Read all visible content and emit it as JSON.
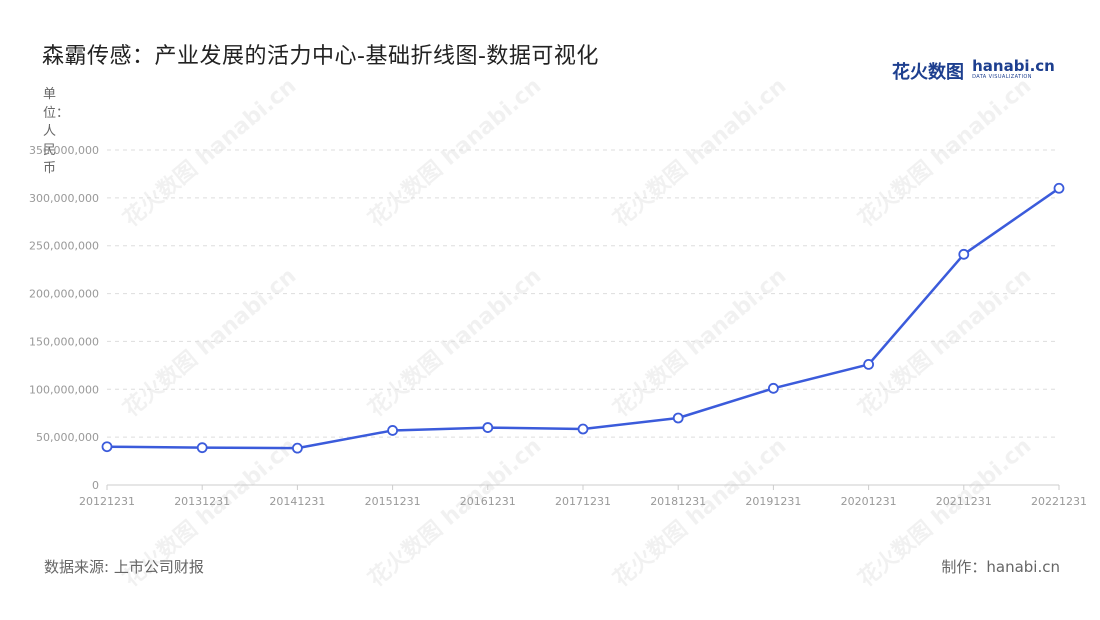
{
  "title": "森霸传感：产业发展的活力中心-基础折线图-数据可视化",
  "logo": {
    "cn": "花火数图",
    "en": "hanabi.cn",
    "sub": "DATA VISUALIZATION"
  },
  "unit_label": "单位：人民币",
  "footer": {
    "source": "数据来源: 上市公司财报",
    "credit": "制作：hanabi.cn"
  },
  "watermark": "花火数图 hanabi.cn",
  "colors": {
    "line": "#3b5bdb",
    "grid": "#dddddd",
    "axis": "#cccccc"
  },
  "chart_data": {
    "type": "line",
    "title": "森霸传感：产业发展的活力中心-基础折线图-数据可视化",
    "xlabel": "",
    "ylabel": "单位：人民币",
    "categories": [
      "20121231",
      "20131231",
      "20141231",
      "20151231",
      "20161231",
      "20171231",
      "20181231",
      "20191231",
      "20201231",
      "20211231",
      "20221231"
    ],
    "series": [
      {
        "values": [
          40000000,
          39000000,
          38500000,
          57000000,
          60000000,
          58500000,
          70000000,
          101000000,
          126000000,
          241000000,
          310000000
        ]
      }
    ],
    "ylim": [
      0,
      350000000
    ],
    "yticks": [
      0,
      50000000,
      100000000,
      150000000,
      200000000,
      250000000,
      300000000,
      350000000
    ],
    "ytick_labels": [
      "0",
      "50,000,000",
      "100,000,000",
      "150,000,000",
      "200,000,000",
      "250,000,000",
      "300,000,000",
      "350,000,000"
    ],
    "grid": true,
    "legend": "none"
  }
}
